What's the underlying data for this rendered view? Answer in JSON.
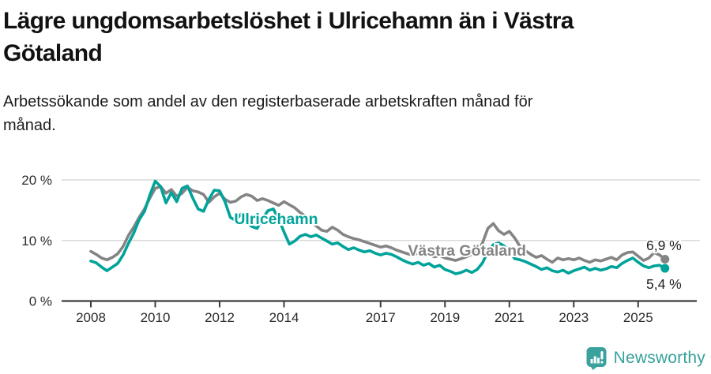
{
  "header": {
    "title_lines": [
      "Lägre ungdomsarbetslöshet i Ulricehamn än i Västra",
      "Götaland"
    ],
    "subtitle_lines": [
      "Arbetssökande som andel av den registerbaserade arbetskraften månad för",
      "månad."
    ]
  },
  "footer": {
    "brand": "Newsworthy",
    "logo_icon": "newsworthy-speech-bubble-bar-chart-icon",
    "brand_color": "#38a09c"
  },
  "colors": {
    "ulricehamn": "#00a39a",
    "vastra_gotaland": "#848484",
    "grid": "#d9d9d9",
    "axis": "#3c3c3c",
    "tick_text": "#2b2b2b",
    "value_text": "#1f1f1f"
  },
  "chart_data": {
    "type": "line",
    "title": "Lägre ungdomsarbetslöshet i Ulricehamn än i Västra Götaland",
    "subtitle": "Arbetssökande som andel av den registerbaserade arbetskraften månad för månad.",
    "ylabel": "",
    "xlabel": "",
    "ylim": [
      0,
      21.5
    ],
    "xlim": [
      2007.1,
      2026.9
    ],
    "grid": "horizontal only",
    "legend_position": "inline labels on lines",
    "x_unit": "decimal year, samples every 2 months",
    "x_start": 2008.0,
    "x_step": 0.16667,
    "x_ticks": [
      2008,
      2010,
      2012,
      2014,
      2017,
      2019,
      2021,
      2023,
      2025
    ],
    "x_tick_labels": [
      "2008",
      "2010",
      "2012",
      "2014",
      "2017",
      "2019",
      "2021",
      "2023",
      "2025"
    ],
    "y_ticks": [
      {
        "value": 0,
        "label": "0 %"
      },
      {
        "value": 10,
        "label": "10 %"
      },
      {
        "value": 20,
        "label": "20 %"
      }
    ],
    "series": [
      {
        "name": "Västra Götaland",
        "color": "#848484",
        "end_label": "6,9 %",
        "end_label_side": "above",
        "label_x": 2017.85,
        "label_y": 7.5,
        "values": [
          8.2,
          7.7,
          7.1,
          6.8,
          7.2,
          7.8,
          9.0,
          10.8,
          12.2,
          13.8,
          15.2,
          17.0,
          18.6,
          18.9,
          17.8,
          18.4,
          17.3,
          17.8,
          18.8,
          18.2,
          18.0,
          17.6,
          16.3,
          17.2,
          17.8,
          16.8,
          16.3,
          16.5,
          17.2,
          17.6,
          17.3,
          16.6,
          16.9,
          16.6,
          16.2,
          15.8,
          16.4,
          15.9,
          15.4,
          14.6,
          14.0,
          13.0,
          12.4,
          11.7,
          11.5,
          12.2,
          11.7,
          11.0,
          10.6,
          10.3,
          10.1,
          9.8,
          9.5,
          9.2,
          8.9,
          9.1,
          8.8,
          8.4,
          8.1,
          7.8,
          7.6,
          7.9,
          7.5,
          7.7,
          7.3,
          7.5,
          7.1,
          6.9,
          6.7,
          7.0,
          7.3,
          7.7,
          8.2,
          9.6,
          12.0,
          12.8,
          11.6,
          11.0,
          11.5,
          10.4,
          9.0,
          8.3,
          7.7,
          7.2,
          7.5,
          6.9,
          6.4,
          7.1,
          6.8,
          7.0,
          6.8,
          7.1,
          6.7,
          6.4,
          6.8,
          6.6,
          6.9,
          7.2,
          6.8,
          7.6,
          8.0,
          8.1,
          7.4,
          6.7,
          7.1,
          8.0,
          7.6,
          6.9
        ]
      },
      {
        "name": "Ulricehamn",
        "color": "#00a39a",
        "end_label": "5,4 %",
        "end_label_side": "below",
        "label_x": 2012.45,
        "label_y": 12.7,
        "values": [
          6.6,
          6.3,
          5.6,
          5.0,
          5.6,
          6.2,
          7.6,
          9.5,
          11.2,
          13.4,
          14.8,
          17.5,
          19.8,
          18.9,
          16.2,
          17.9,
          16.4,
          18.6,
          19.0,
          17.0,
          15.2,
          14.8,
          16.8,
          18.3,
          18.2,
          16.4,
          13.8,
          13.3,
          14.4,
          13.0,
          12.3,
          12.0,
          13.6,
          14.9,
          15.2,
          13.6,
          11.4,
          9.4,
          9.9,
          10.7,
          11.0,
          10.6,
          10.9,
          10.4,
          9.9,
          9.4,
          9.6,
          9.0,
          8.5,
          8.8,
          8.4,
          8.1,
          8.3,
          7.9,
          7.6,
          7.9,
          7.7,
          7.3,
          6.8,
          6.4,
          6.1,
          6.4,
          5.9,
          6.2,
          5.6,
          5.9,
          5.2,
          4.9,
          4.5,
          4.7,
          5.1,
          4.7,
          5.2,
          6.3,
          8.2,
          9.3,
          9.6,
          9.1,
          8.2,
          7.0,
          6.8,
          6.5,
          6.1,
          5.7,
          5.2,
          5.5,
          5.0,
          4.8,
          5.1,
          4.6,
          5.0,
          5.3,
          5.6,
          5.1,
          5.4,
          5.1,
          5.3,
          5.7,
          5.5,
          6.2,
          6.7,
          7.1,
          6.4,
          5.8,
          5.5,
          5.8,
          5.9,
          5.4
        ]
      }
    ]
  }
}
